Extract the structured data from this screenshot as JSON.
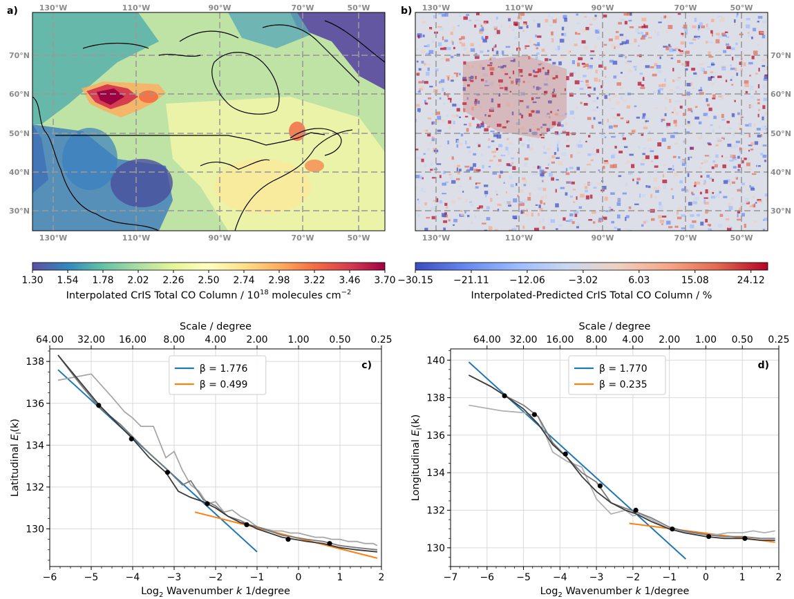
{
  "panels": {
    "a": {
      "label": "a)",
      "lon_ticks": [
        "130°W",
        "110°W",
        "90°W",
        "70°W",
        "50°W"
      ],
      "lat_ticks": [
        "70°N",
        "60°N",
        "50°N",
        "40°N",
        "30°N"
      ],
      "colorbar": {
        "ticks": [
          "1.30",
          "1.54",
          "1.78",
          "2.02",
          "2.26",
          "2.50",
          "2.74",
          "2.98",
          "3.22",
          "3.46",
          "3.70"
        ],
        "label": "Interpolated CrIS Total CO Column / 10",
        "label_sup1": "18",
        "label_mid": " molecules cm",
        "label_sup2": "−2",
        "colors": [
          "#5e4fa2",
          "#3288bd",
          "#66c2a5",
          "#abdda4",
          "#e6f598",
          "#ffffbf",
          "#fee08b",
          "#fdae61",
          "#f46d43",
          "#d53e4f",
          "#9e0142"
        ]
      }
    },
    "b": {
      "label": "b)",
      "lon_ticks": [
        "130°W",
        "110°W",
        "90°W",
        "70°W",
        "50°W"
      ],
      "lat_ticks": [
        "70°N",
        "60°N",
        "50°N",
        "40°N",
        "30°N"
      ],
      "colorbar": {
        "ticks": [
          "−30.15",
          "−21.11",
          "−12.06",
          "−3.02",
          "6.03",
          "15.08",
          "24.12"
        ],
        "label": "Interpolated-Predicted CrIS Total CO Column / %",
        "colors": [
          "#3b4cc0",
          "#6788ee",
          "#9abbff",
          "#c9d7f0",
          "#edd1c2",
          "#f7a889",
          "#e26952",
          "#b40426"
        ]
      }
    }
  },
  "chart_data": [
    {
      "type": "line",
      "panel_label": "c)",
      "xlabel_pre": "Log",
      "xlabel_sub": "2",
      "xlabel_post": " Wavenumber ",
      "xlabel_k": "k",
      "xlabel_end": " 1/degree",
      "ylabel_pre": "Latitudinal ",
      "ylabel_E": "E",
      "ylabel_sub": "l",
      "ylabel_end": "(k)",
      "top_axis_label": "Scale / degree",
      "top_ticks": [
        "64.00",
        "32.00",
        "16.00",
        "8.00",
        "4.00",
        "2.00",
        "1.00",
        "0.50",
        "0.25"
      ],
      "xlim": [
        -6,
        2
      ],
      "ylim": [
        128.2,
        138.6
      ],
      "xticks": [
        -6,
        -5,
        -4,
        -3,
        -2,
        -1,
        0,
        1,
        2
      ],
      "xtick_labels": [
        "−6",
        "−5",
        "−4",
        "−3",
        "−2",
        "−1",
        "0",
        "1",
        "2"
      ],
      "yticks": [
        130,
        132,
        134,
        136,
        138
      ],
      "ytick_labels": [
        "130",
        "132",
        "134",
        "136",
        "138"
      ],
      "grid": true,
      "legend_position": "top-center",
      "series": [
        {
          "name": "β = 1.776",
          "color": "#1f77b4",
          "x": [
            -5.8,
            -1.0
          ],
          "y": [
            137.6,
            128.9
          ]
        },
        {
          "name": "β = 0.499",
          "color": "#ff7f0e",
          "x": [
            -2.5,
            1.9
          ],
          "y": [
            130.8,
            128.6
          ]
        },
        {
          "color": "#a6a6a6",
          "x": [
            -5.8,
            -5.0,
            -4.5,
            -4.2,
            -4.0,
            -3.8,
            -3.5,
            -3.2,
            -3.0,
            -2.8,
            -2.6,
            -2.4,
            -2.2,
            -2.0,
            -1.8,
            -1.6,
            -1.4,
            -1.2,
            -1.0,
            -0.8,
            -0.6,
            -0.4,
            -0.2,
            0,
            0.2,
            0.4,
            0.6,
            0.8,
            1.0,
            1.2,
            1.4,
            1.6,
            1.8,
            1.9
          ],
          "y": [
            137.1,
            137.4,
            136.3,
            135.6,
            135.3,
            134.9,
            134.9,
            133.4,
            133.7,
            132.8,
            132.1,
            131.8,
            131.2,
            131.3,
            130.8,
            130.9,
            130.6,
            130.4,
            130.1,
            130.0,
            129.9,
            129.9,
            129.8,
            129.8,
            129.7,
            129.6,
            129.6,
            129.5,
            129.5,
            129.4,
            129.4,
            129.3,
            129.3,
            129.2
          ]
        },
        {
          "color": "#7a7a7a",
          "x": [
            -5.8,
            -5.3,
            -4.8,
            -4.3,
            -4.0,
            -3.6,
            -3.2,
            -2.8,
            -2.6,
            -2.3,
            -2.0,
            -1.7,
            -1.4,
            -1.2,
            -1.0,
            -0.7,
            -0.4,
            -0.1,
            0.2,
            0.6,
            1.0,
            1.4,
            1.9
          ],
          "y": [
            138.3,
            137.0,
            135.8,
            135.0,
            134.4,
            133.6,
            132.9,
            132.1,
            132.3,
            131.4,
            131.1,
            130.6,
            130.4,
            130.2,
            130.1,
            129.9,
            129.7,
            129.6,
            129.5,
            129.4,
            129.2,
            129.1,
            129.0
          ]
        },
        {
          "color": "#3a3a3a",
          "x": [
            -5.8,
            -5.3,
            -4.8,
            -4.3,
            -4.0,
            -3.6,
            -3.2,
            -2.9,
            -2.6,
            -2.3,
            -2.0,
            -1.7,
            -1.4,
            -1.2,
            -1.0,
            -0.7,
            -0.4,
            -0.1,
            0.2,
            0.6,
            1.0,
            1.4,
            1.9
          ],
          "y": [
            138.3,
            137.1,
            135.9,
            134.9,
            134.3,
            133.4,
            132.7,
            131.8,
            131.5,
            131.3,
            131.0,
            130.6,
            130.3,
            130.2,
            130.0,
            129.8,
            129.6,
            129.5,
            129.4,
            129.3,
            129.1,
            129.0,
            128.9
          ]
        },
        {
          "type": "scatter",
          "color": "#000000",
          "x": [
            -4.82,
            -4.03,
            -3.16,
            -2.2,
            -1.25,
            -0.25,
            0.75
          ],
          "y": [
            135.9,
            134.3,
            132.7,
            131.2,
            130.2,
            129.5,
            129.3
          ]
        }
      ]
    },
    {
      "type": "line",
      "panel_label": "d)",
      "xlabel_pre": "Log",
      "xlabel_sub": "2",
      "xlabel_post": " Wavenumber ",
      "xlabel_k": "k",
      "xlabel_end": " 1/degree",
      "ylabel_pre": "Longitudinal ",
      "ylabel_E": "E",
      "ylabel_sub": "l",
      "ylabel_end": "(k)",
      "top_axis_label": "Scale / degree",
      "top_ticks": [
        "64.00",
        "32.00",
        "16.00",
        "8.00",
        "4.00",
        "2.00",
        "1.00",
        "0.50",
        "0.25"
      ],
      "xlim": [
        -7,
        2
      ],
      "ylim": [
        129.0,
        140.6
      ],
      "xticks": [
        -7,
        -6,
        -5,
        -4,
        -3,
        -2,
        -1,
        0,
        1,
        2
      ],
      "xtick_labels": [
        "−7",
        "−6",
        "−5",
        "−4",
        "−3",
        "−2",
        "−1",
        "0",
        "1",
        "2"
      ],
      "yticks": [
        130,
        132,
        134,
        136,
        138,
        140
      ],
      "ytick_labels": [
        "130",
        "132",
        "134",
        "136",
        "138",
        "140"
      ],
      "grid": true,
      "legend_position": "top-center",
      "series": [
        {
          "name": "β = 1.770",
          "color": "#1f77b4",
          "x": [
            -6.5,
            -0.55
          ],
          "y": [
            139.9,
            129.4
          ]
        },
        {
          "name": "β = 0.235",
          "color": "#ff7f0e",
          "x": [
            -2.1,
            1.9
          ],
          "y": [
            131.3,
            130.3
          ]
        },
        {
          "color": "#b0b0b0",
          "x": [
            -6.5,
            -5.6,
            -5.0,
            -4.6,
            -4.2,
            -3.8,
            -3.4,
            -3.0,
            -2.6,
            -2.2,
            -2.0,
            -1.8,
            -1.5,
            -1.2,
            -1.0,
            -0.7,
            -0.4,
            0,
            0.3,
            0.6,
            1.0,
            1.3,
            1.6,
            1.9
          ],
          "y": [
            137.6,
            137.3,
            137.2,
            137.0,
            135.1,
            134.6,
            134.3,
            132.6,
            131.8,
            132.0,
            131.7,
            131.8,
            131.5,
            131.2,
            131.0,
            130.9,
            130.8,
            130.7,
            130.7,
            130.8,
            130.8,
            130.9,
            130.8,
            130.9
          ]
        },
        {
          "color": "#7a7a7a",
          "x": [
            -6.5,
            -5.9,
            -5.5,
            -5.0,
            -4.6,
            -4.2,
            -3.8,
            -3.4,
            -3.0,
            -2.6,
            -2.2,
            -1.9,
            -1.5,
            -1.0,
            -0.6,
            0,
            0.5,
            1.0,
            1.5,
            1.9
          ],
          "y": [
            139.2,
            138.6,
            138.1,
            137.6,
            137.0,
            135.6,
            134.8,
            134.0,
            133.5,
            132.4,
            132.1,
            131.9,
            131.6,
            131.1,
            130.9,
            130.7,
            130.6,
            130.6,
            130.5,
            130.5
          ]
        },
        {
          "color": "#3a3a3a",
          "x": [
            -6.5,
            -5.9,
            -5.5,
            -5.0,
            -4.6,
            -4.2,
            -3.8,
            -3.4,
            -3.0,
            -2.6,
            -2.2,
            -1.9,
            -1.5,
            -1.0,
            -0.6,
            0,
            0.5,
            1.0,
            1.5,
            1.9
          ],
          "y": [
            139.2,
            138.6,
            138.1,
            137.4,
            136.6,
            135.5,
            134.8,
            133.8,
            133.0,
            132.4,
            132.0,
            131.8,
            131.4,
            131.0,
            130.8,
            130.6,
            130.5,
            130.5,
            130.4,
            130.4
          ]
        },
        {
          "type": "scatter",
          "color": "#000000",
          "x": [
            -5.52,
            -4.7,
            -3.85,
            -2.9,
            -1.92,
            -0.92,
            0.08,
            1.07
          ],
          "y": [
            138.1,
            137.1,
            135.0,
            133.3,
            132.0,
            131.0,
            130.6,
            130.5
          ]
        }
      ]
    }
  ]
}
